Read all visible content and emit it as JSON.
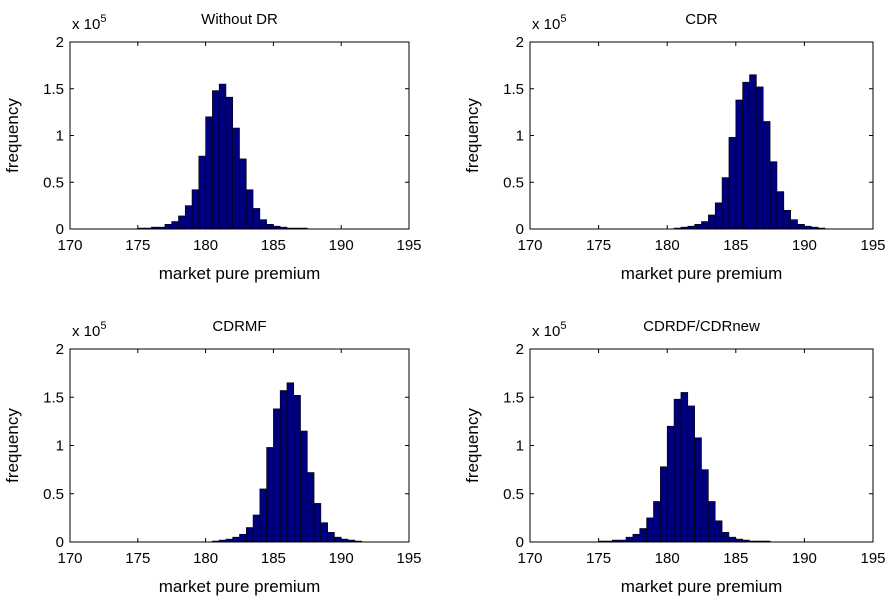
{
  "chart_data": [
    {
      "type": "bar",
      "title": "Without DR",
      "xlabel": "market pure premium",
      "ylabel": "frequency",
      "y_multiplier": {
        "base": "x 10",
        "exponent": "5"
      },
      "xlim": [
        170,
        195
      ],
      "ylim": [
        0,
        2
      ],
      "xticks": [
        "170",
        "175",
        "180",
        "185",
        "190",
        "195"
      ],
      "yticks": [
        "0",
        "0.5",
        "1",
        "1.5",
        "2"
      ],
      "bar_color": "#00007f",
      "bin_width": 0.5,
      "x": [
        175,
        175.5,
        176,
        176.5,
        177,
        177.5,
        178,
        178.5,
        179,
        179.5,
        180,
        180.5,
        181,
        181.5,
        182,
        182.5,
        183,
        183.5,
        184,
        184.5,
        185,
        185.5,
        186,
        186.5,
        187
      ],
      "values": [
        0.01,
        0.01,
        0.02,
        0.02,
        0.05,
        0.08,
        0.14,
        0.25,
        0.42,
        0.78,
        1.2,
        1.48,
        1.55,
        1.41,
        1.08,
        0.75,
        0.42,
        0.22,
        0.1,
        0.05,
        0.03,
        0.02,
        0.01,
        0.01,
        0.01
      ]
    },
    {
      "type": "bar",
      "title": "CDR",
      "xlabel": "market pure premium",
      "ylabel": "frequency",
      "y_multiplier": {
        "base": "x 10",
        "exponent": "5"
      },
      "xlim": [
        170,
        195
      ],
      "ylim": [
        0,
        2
      ],
      "xticks": [
        "170",
        "175",
        "180",
        "185",
        "190",
        "195"
      ],
      "yticks": [
        "0",
        "0.5",
        "1",
        "1.5",
        "2"
      ],
      "bar_color": "#00007f",
      "bin_width": 0.5,
      "x": [
        180.5,
        181,
        181.5,
        182,
        182.5,
        183,
        183.5,
        184,
        184.5,
        185,
        185.5,
        186,
        186.5,
        187,
        187.5,
        188,
        188.5,
        189,
        189.5,
        190,
        190.5,
        191
      ],
      "values": [
        0.01,
        0.02,
        0.03,
        0.05,
        0.08,
        0.15,
        0.28,
        0.55,
        0.98,
        1.38,
        1.57,
        1.65,
        1.52,
        1.15,
        0.72,
        0.4,
        0.2,
        0.1,
        0.05,
        0.03,
        0.02,
        0.01
      ]
    },
    {
      "type": "bar",
      "title": "CDRMF",
      "xlabel": "market pure premium",
      "ylabel": "frequency",
      "y_multiplier": {
        "base": "x 10",
        "exponent": "5"
      },
      "xlim": [
        170,
        195
      ],
      "ylim": [
        0,
        2
      ],
      "xticks": [
        "170",
        "175",
        "180",
        "185",
        "190",
        "195"
      ],
      "yticks": [
        "0",
        "0.5",
        "1",
        "1.5",
        "2"
      ],
      "bar_color": "#00007f",
      "bin_width": 0.5,
      "x": [
        180.5,
        181,
        181.5,
        182,
        182.5,
        183,
        183.5,
        184,
        184.5,
        185,
        185.5,
        186,
        186.5,
        187,
        187.5,
        188,
        188.5,
        189,
        189.5,
        190,
        190.5,
        191
      ],
      "values": [
        0.01,
        0.02,
        0.03,
        0.05,
        0.08,
        0.15,
        0.28,
        0.55,
        0.98,
        1.38,
        1.57,
        1.65,
        1.52,
        1.15,
        0.72,
        0.4,
        0.2,
        0.1,
        0.05,
        0.03,
        0.02,
        0.01
      ]
    },
    {
      "type": "bar",
      "title": "CDRDF/CDRnew",
      "xlabel": "market pure premium",
      "ylabel": "frequency",
      "y_multiplier": {
        "base": "x 10",
        "exponent": "5"
      },
      "xlim": [
        170,
        195
      ],
      "ylim": [
        0,
        2
      ],
      "xticks": [
        "170",
        "175",
        "180",
        "185",
        "190",
        "195"
      ],
      "yticks": [
        "0",
        "0.5",
        "1",
        "1.5",
        "2"
      ],
      "bar_color": "#00007f",
      "bin_width": 0.5,
      "x": [
        175,
        175.5,
        176,
        176.5,
        177,
        177.5,
        178,
        178.5,
        179,
        179.5,
        180,
        180.5,
        181,
        181.5,
        182,
        182.5,
        183,
        183.5,
        184,
        184.5,
        185,
        185.5,
        186,
        186.5,
        187
      ],
      "values": [
        0.01,
        0.01,
        0.02,
        0.02,
        0.05,
        0.08,
        0.14,
        0.25,
        0.42,
        0.78,
        1.2,
        1.48,
        1.55,
        1.41,
        1.08,
        0.75,
        0.42,
        0.22,
        0.1,
        0.05,
        0.03,
        0.02,
        0.01,
        0.01,
        0.01
      ]
    }
  ]
}
